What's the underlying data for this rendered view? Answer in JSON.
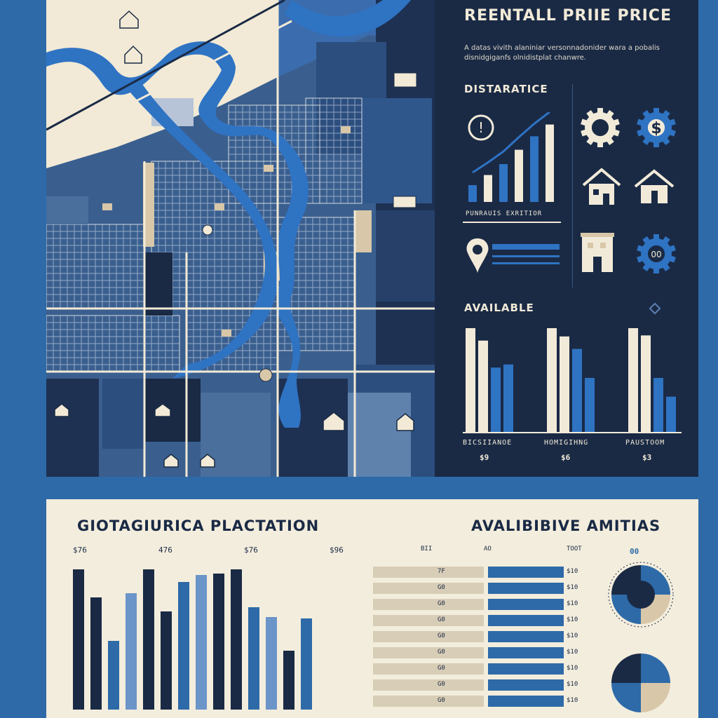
{
  "colors": {
    "navy": "#1a2a45",
    "blue": "#2e6aa8",
    "river": "#2f73c3",
    "slate": "#3a5f8f",
    "cream": "#f3eddd",
    "tan": "#d8c7a8"
  },
  "right_panel": {
    "title": "REENTALL PRIIE PRICE",
    "description": "A datas vivith alaniniar versonnadonider wara a pobalis disnidgiganfs olnidistplat chanwre.",
    "distraction_heading": "DISTARATICE",
    "trend_caption": "PUNRAUIS EXRITIOR",
    "icons": [
      "alert-icon",
      "gear-icon",
      "dollar-gear-icon",
      "house-icon",
      "house-outline-icon",
      "location-pin-icon",
      "building-icon",
      "gear-badge-icon"
    ],
    "gear_badge_text": "00",
    "available_heading": "AVAILABLE",
    "groups": [
      {
        "label": "BICSIIANOE",
        "price": "$9"
      },
      {
        "label": "HOMIGIHNG",
        "price": "$6"
      },
      {
        "label": "PAUSTOOM",
        "price": "$3"
      }
    ]
  },
  "bottom": {
    "left_title": "GIOTAGIURICA PLACTATION",
    "right_title": "AVALIBIBIVE AMITIAS",
    "pie_badge": "00",
    "column_headers": [
      "BII",
      "AO",
      "TOOT"
    ],
    "rows": [
      {
        "a": "7F",
        "v": "$10"
      },
      {
        "a": "G0",
        "v": "$10"
      },
      {
        "a": "G0",
        "v": "$10"
      },
      {
        "a": "G0",
        "v": "$10"
      },
      {
        "a": "G0",
        "v": "$10"
      },
      {
        "a": "G0",
        "v": "$10"
      },
      {
        "a": "G0",
        "v": "$10"
      },
      {
        "a": "G0",
        "v": "$10"
      },
      {
        "a": "G0",
        "v": "$10"
      }
    ]
  },
  "chart_data": [
    {
      "type": "line",
      "title": "",
      "categories": [
        "1",
        "2",
        "3",
        "4",
        "5",
        "6"
      ],
      "series": [
        {
          "values": [
            20,
            32,
            45,
            62,
            78,
            92
          ]
        }
      ]
    },
    {
      "type": "bar",
      "title": "AVAILABLE",
      "categories": [
        "BICSIIANOE",
        "HOMIGIHNG",
        "PAUSTOOM"
      ],
      "series": [
        {
          "values": [
            100,
            100,
            100
          ]
        },
        {
          "values": [
            88,
            92,
            93
          ]
        },
        {
          "values": [
            62,
            80,
            52
          ]
        },
        {
          "values": [
            65,
            52,
            34
          ]
        }
      ]
    },
    {
      "type": "bar",
      "title": "GIOTAGIURICA PLACTATION",
      "tick_labels": [
        "$76",
        "476",
        "$76",
        "$96"
      ],
      "categories": [
        "1",
        "2",
        "3",
        "4",
        "5",
        "6",
        "7",
        "8",
        "9",
        "10",
        "11",
        "12",
        "13",
        "14"
      ],
      "series": [
        {
          "values": [
            100,
            80,
            49,
            83,
            100,
            70,
            91,
            96,
            97,
            100,
            73,
            66,
            42,
            65
          ]
        }
      ]
    },
    {
      "type": "pie",
      "values": [
        25,
        25,
        25,
        25
      ]
    },
    {
      "type": "pie",
      "values": [
        25,
        25,
        25,
        25
      ]
    }
  ]
}
